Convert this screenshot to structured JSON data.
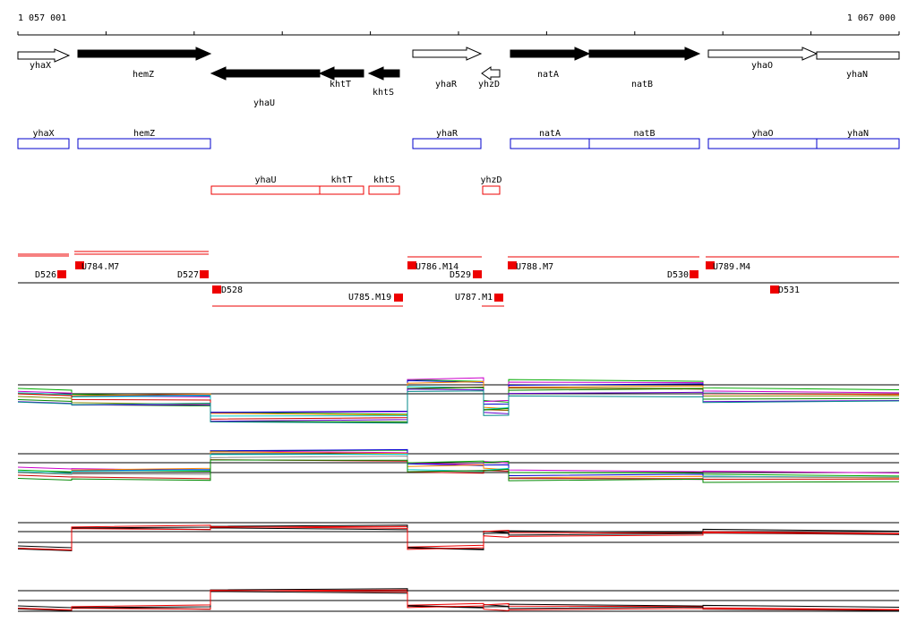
{
  "ruler": {
    "start": "1 057 001",
    "end": "1 067 000"
  },
  "genes": [
    "yhaX",
    "hemZ",
    "yhaU",
    "khtT",
    "khtS",
    "yhaR",
    "yhzD",
    "natA",
    "natB",
    "yhaO",
    "yhaN"
  ],
  "blue_boxes": [
    "yhaX",
    "hemZ",
    "yhaR",
    "natA",
    "natB",
    "yhaO",
    "yhaN"
  ],
  "red_boxes": [
    "yhaU",
    "khtT",
    "khtS",
    "yhzD"
  ],
  "features": [
    "D526",
    "U784.M7",
    "D527",
    "D528",
    "U785.M19",
    "U786.M14",
    "D529",
    "U787.M1",
    "U788.M7",
    "D530",
    "U789.M4",
    "D531"
  ]
}
